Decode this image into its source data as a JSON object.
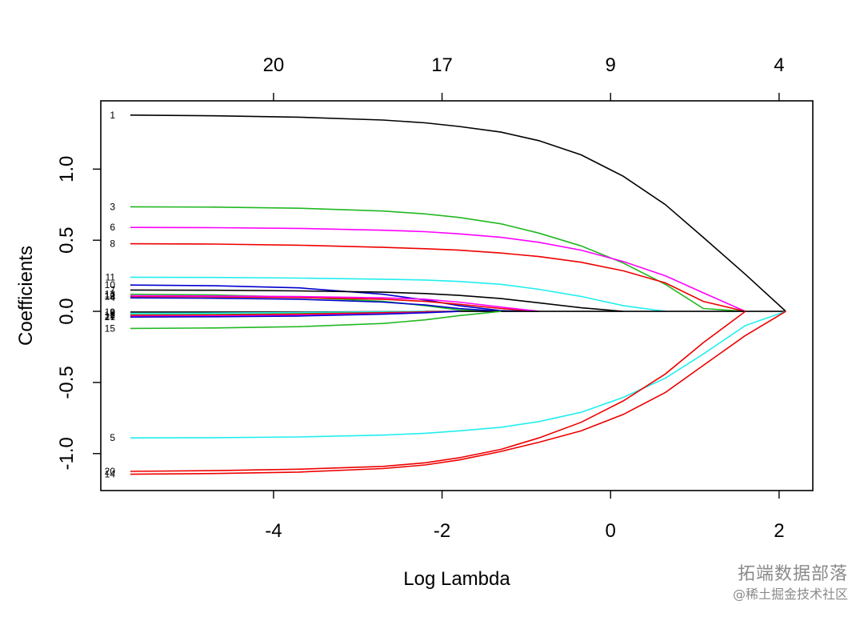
{
  "chart_data": {
    "type": "line",
    "xlabel": "Log Lambda",
    "ylabel": "Coefficients",
    "xlim": [
      -6.05,
      2.4
    ],
    "ylim": [
      -1.26,
      1.48
    ],
    "x_ticks": [
      -4,
      -2,
      0,
      2
    ],
    "x_tick_labels": [
      "-4",
      "-2",
      "0",
      "2"
    ],
    "y_ticks": [
      -1.0,
      -0.5,
      0.0,
      0.5,
      1.0
    ],
    "y_tick_labels": [
      "-1.0",
      "-0.5",
      "0.0",
      "0.5",
      "1.0"
    ],
    "top_axis": {
      "ticks": [
        -4,
        -2,
        0,
        2
      ],
      "labels": [
        "20",
        "17",
        "9",
        "4"
      ]
    },
    "grid": false,
    "series": [
      {
        "name": "1",
        "color": "#000000",
        "label_y": 1.38,
        "x": [
          -5.7,
          -4.7,
          -3.7,
          -2.7,
          -2.2,
          -1.8,
          -1.3,
          -0.85,
          -0.35,
          0.15,
          0.65,
          1.1,
          1.6,
          2.08
        ],
        "y": [
          1.38,
          1.375,
          1.365,
          1.345,
          1.325,
          1.3,
          1.26,
          1.2,
          1.1,
          0.95,
          0.75,
          0.52,
          0.26,
          0.0
        ]
      },
      {
        "name": "3",
        "color": "#22b822",
        "label_y": 0.735,
        "x": [
          -5.7,
          -4.7,
          -3.7,
          -2.7,
          -2.2,
          -1.8,
          -1.3,
          -0.85,
          -0.35,
          0.15,
          0.65,
          1.1,
          1.6
        ],
        "y": [
          0.735,
          0.733,
          0.725,
          0.705,
          0.685,
          0.66,
          0.615,
          0.55,
          0.46,
          0.34,
          0.19,
          0.02,
          0.0
        ]
      },
      {
        "name": "6",
        "color": "#ff00ff",
        "label_y": 0.59,
        "x": [
          -5.7,
          -4.7,
          -3.7,
          -2.7,
          -2.2,
          -1.8,
          -1.3,
          -0.85,
          -0.35,
          0.15,
          0.65,
          1.1,
          1.6
        ],
        "y": [
          0.59,
          0.588,
          0.583,
          0.57,
          0.56,
          0.545,
          0.52,
          0.485,
          0.43,
          0.35,
          0.25,
          0.13,
          0.0
        ]
      },
      {
        "name": "8",
        "color": "#ee0000",
        "label_y": 0.475,
        "x": [
          -5.7,
          -4.7,
          -3.7,
          -2.7,
          -2.2,
          -1.8,
          -1.3,
          -0.85,
          -0.35,
          0.15,
          0.65,
          1.1,
          1.6
        ],
        "y": [
          0.475,
          0.473,
          0.465,
          0.45,
          0.44,
          0.43,
          0.41,
          0.385,
          0.345,
          0.285,
          0.2,
          0.07,
          0.0
        ]
      },
      {
        "name": "11",
        "color": "#22eeee",
        "label_y": 0.24,
        "x": [
          -5.7,
          -4.7,
          -3.7,
          -2.7,
          -2.2,
          -1.8,
          -1.3,
          -0.85,
          -0.35,
          0.15,
          0.65
        ],
        "y": [
          0.24,
          0.238,
          0.234,
          0.226,
          0.22,
          0.21,
          0.19,
          0.155,
          0.105,
          0.04,
          0.0
        ]
      },
      {
        "name": "10",
        "color": "#0000cc",
        "label_y": 0.185,
        "x": [
          -5.7,
          -4.7,
          -3.7,
          -2.7,
          -2.2,
          -1.8,
          -1.3,
          -0.85
        ],
        "y": [
          0.185,
          0.18,
          0.165,
          0.12,
          0.08,
          0.04,
          0.005,
          0.0
        ]
      },
      {
        "name": "7",
        "color": "#000000",
        "label_y": 0.15,
        "x": [
          -5.7,
          -4.7,
          -3.7,
          -2.7,
          -2.2,
          -1.8,
          -1.3,
          -0.85,
          -0.35,
          0.15
        ],
        "y": [
          0.15,
          0.148,
          0.144,
          0.135,
          0.125,
          0.112,
          0.09,
          0.06,
          0.025,
          0.0
        ]
      },
      {
        "name": "13",
        "color": "#22b822",
        "label_y": 0.12,
        "x": [
          -5.7,
          -4.7,
          -3.7,
          -2.7,
          -2.2,
          -1.8,
          -1.3
        ],
        "y": [
          0.12,
          0.115,
          0.1,
          0.07,
          0.04,
          0.01,
          0.0
        ]
      },
      {
        "name": "18",
        "color": "#ee0000",
        "label_y": 0.105,
        "x": [
          -5.7,
          -4.7,
          -3.7,
          -2.7,
          -2.2,
          -1.8,
          -1.3,
          -0.85
        ],
        "y": [
          0.105,
          0.102,
          0.097,
          0.085,
          0.07,
          0.05,
          0.02,
          0.0
        ]
      },
      {
        "name": "4",
        "color": "#0000cc",
        "label_y": 0.095,
        "x": [
          -5.7,
          -4.7,
          -3.7,
          -2.7,
          -2.2,
          -1.8,
          -1.3
        ],
        "y": [
          0.095,
          0.092,
          0.085,
          0.065,
          0.045,
          0.02,
          0.0
        ]
      },
      {
        "name": "12",
        "color": "#ff00ff",
        "label_y": 0.11,
        "x": [
          -5.7,
          -4.7,
          -3.7,
          -2.7,
          -2.2,
          -1.8,
          -1.3,
          -0.85
        ],
        "y": [
          0.11,
          0.108,
          0.104,
          0.095,
          0.085,
          0.065,
          0.03,
          0.0
        ]
      },
      {
        "name": "19",
        "color": "#000000",
        "label_y": -0.005,
        "x": [
          -5.7,
          -3.7,
          -1.8,
          2.08
        ],
        "y": [
          -0.005,
          -0.005,
          0.0,
          0.0
        ]
      },
      {
        "name": "9",
        "color": "#22eeee",
        "label_y": -0.015,
        "x": [
          -5.7,
          -4.7,
          -3.7,
          -2.7,
          -2.2
        ],
        "y": [
          -0.015,
          -0.012,
          -0.008,
          -0.003,
          0.0
        ]
      },
      {
        "name": "16",
        "color": "#22b822",
        "label_y": -0.025,
        "x": [
          -5.7,
          -4.7,
          -3.7,
          -2.7,
          -2.2,
          -1.8
        ],
        "y": [
          -0.025,
          -0.022,
          -0.017,
          -0.008,
          -0.003,
          0.0
        ]
      },
      {
        "name": "2",
        "color": "#ee0000",
        "label_y": -0.028,
        "x": [
          -5.7,
          -4.7,
          -3.7,
          -2.7,
          -2.2,
          -1.8
        ],
        "y": [
          -0.028,
          -0.026,
          -0.02,
          -0.01,
          -0.004,
          0.0
        ]
      },
      {
        "name": "17",
        "color": "#ff00ff",
        "label_y": -0.035,
        "x": [
          -5.7,
          -4.7,
          -3.7,
          -2.7,
          -2.2,
          -1.8
        ],
        "y": [
          -0.035,
          -0.033,
          -0.028,
          -0.017,
          -0.008,
          0.0
        ]
      },
      {
        "name": "21",
        "color": "#0000cc",
        "label_y": -0.04,
        "x": [
          -5.7,
          -4.7,
          -3.7,
          -2.7,
          -2.2,
          -1.8
        ],
        "y": [
          -0.04,
          -0.038,
          -0.033,
          -0.02,
          -0.01,
          0.0
        ]
      },
      {
        "name": "15",
        "color": "#22b822",
        "label_y": -0.12,
        "x": [
          -5.7,
          -4.7,
          -3.7,
          -2.7,
          -2.2,
          -1.8,
          -1.3
        ],
        "y": [
          -0.12,
          -0.117,
          -0.108,
          -0.085,
          -0.06,
          -0.03,
          0.0
        ]
      },
      {
        "name": "5",
        "color": "#22eeee",
        "label_y": -0.89,
        "x": [
          -5.7,
          -4.7,
          -3.7,
          -2.7,
          -2.2,
          -1.8,
          -1.3,
          -0.85,
          -0.35,
          0.15,
          0.65,
          1.1,
          1.6,
          2.08
        ],
        "y": [
          -0.89,
          -0.888,
          -0.883,
          -0.87,
          -0.857,
          -0.84,
          -0.815,
          -0.775,
          -0.71,
          -0.605,
          -0.47,
          -0.3,
          -0.1,
          0.0
        ]
      },
      {
        "name": "20",
        "color": "#ee0000",
        "label_y": -1.125,
        "x": [
          -5.7,
          -4.7,
          -3.7,
          -2.7,
          -2.2,
          -1.8,
          -1.3,
          -0.85,
          -0.35,
          0.15,
          0.65,
          1.1,
          1.6
        ],
        "y": [
          -1.125,
          -1.12,
          -1.11,
          -1.09,
          -1.065,
          -1.03,
          -0.97,
          -0.89,
          -0.78,
          -0.63,
          -0.44,
          -0.22,
          0.0
        ]
      },
      {
        "name": "14",
        "color": "#ee0000",
        "label_y": -1.145,
        "x": [
          -5.7,
          -4.7,
          -3.7,
          -2.7,
          -2.2,
          -1.8,
          -1.3,
          -0.85,
          -0.35,
          0.15,
          0.65,
          1.1,
          1.6,
          2.08
        ],
        "y": [
          -1.145,
          -1.14,
          -1.13,
          -1.105,
          -1.08,
          -1.045,
          -0.985,
          -0.92,
          -0.84,
          -0.725,
          -0.57,
          -0.38,
          -0.17,
          0.0
        ]
      }
    ]
  },
  "watermark": {
    "line1": "拓端数据部落",
    "line2": "@稀土掘金技术社区"
  }
}
